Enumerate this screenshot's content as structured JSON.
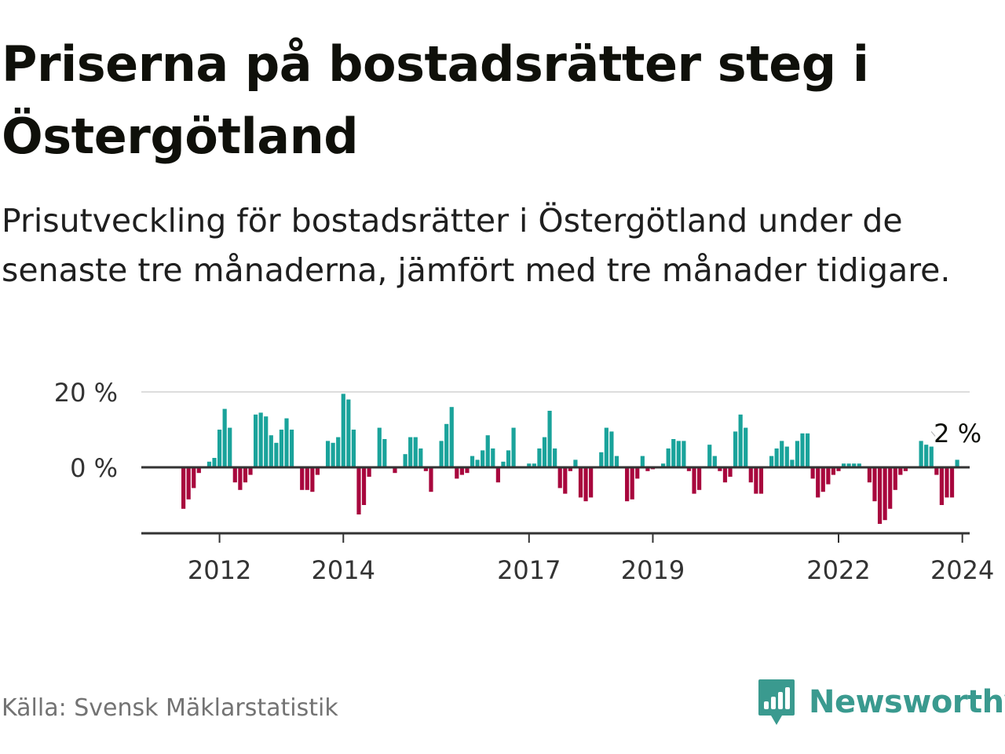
{
  "title": "Priserna på bostadsrätter steg i Östergötland",
  "subtitle": "Prisutveckling för bostadsrätter i Östergötland under de senaste tre månaderna, jämfört med tre månader tidigare.",
  "source": "Källa: Svensk Mäklarstatistik",
  "logo_text": "Newsworthy",
  "colors": {
    "positive": "#1aa39b",
    "negative": "#a8073d",
    "zero_line": "#333333",
    "grid": "#dddddd",
    "axis": "#333333",
    "text": "#0f100a",
    "muted": "#737373",
    "brand": "#3a9a8f"
  },
  "chart_data": {
    "type": "bar",
    "title": "Priserna på bostadsrätter steg i Östergötland",
    "ylabel": "",
    "xlabel": "",
    "ylim": [
      -17,
      20
    ],
    "y_ticks": [
      {
        "value": 20,
        "label": "20 %"
      },
      {
        "value": 0,
        "label": "0 %"
      }
    ],
    "x_ticks": [
      {
        "index": 7,
        "label": "2012"
      },
      {
        "index": 31,
        "label": "2014"
      },
      {
        "index": 67,
        "label": "2017"
      },
      {
        "index": 91,
        "label": "2019"
      },
      {
        "index": 127,
        "label": "2022"
      },
      {
        "index": 151,
        "label": "2024"
      }
    ],
    "start_month": "2011-06",
    "unit": "%",
    "last_label": "2 %",
    "values": [
      -11,
      -8.5,
      -5.5,
      -1.5,
      0,
      1.5,
      2.5,
      10,
      15.5,
      10.5,
      -4,
      -6,
      -4,
      -2,
      14,
      14.5,
      13.5,
      8.5,
      6.5,
      10,
      13,
      10,
      0,
      -6,
      -6,
      -6.5,
      -2,
      0,
      7,
      6.5,
      8,
      19.5,
      18,
      10,
      -12.5,
      -10,
      -2.5,
      0,
      10.5,
      7.5,
      0,
      -1.5,
      0,
      3.5,
      8,
      8,
      5,
      -1,
      -6.5,
      0,
      7,
      11.5,
      16,
      -3,
      -2,
      -1.5,
      3,
      2,
      4.5,
      8.5,
      5,
      -4,
      1.5,
      4.5,
      10.5,
      0,
      0,
      1,
      1,
      5,
      8,
      15,
      5,
      -5.5,
      -7,
      -1,
      2,
      -8,
      -9,
      -8,
      0,
      4,
      10.5,
      9.5,
      3,
      0,
      -9,
      -8.5,
      -3,
      3,
      -1,
      -0.5,
      0,
      1,
      5,
      7.5,
      7,
      7,
      -1,
      -7,
      -6,
      0,
      6,
      3,
      -1,
      -4,
      -2.5,
      9.5,
      14,
      10.5,
      -4,
      -7,
      -7,
      0,
      3,
      5,
      7,
      5.5,
      2,
      7,
      9,
      9,
      -3,
      -8,
      -6.5,
      -4.5,
      -2,
      -1,
      1,
      1,
      1,
      1,
      0,
      -4,
      -9,
      -15,
      -14,
      -11,
      -6,
      -2,
      -1,
      0,
      0,
      7,
      6,
      5.5,
      -2,
      -10,
      -8,
      -8,
      2
    ]
  }
}
